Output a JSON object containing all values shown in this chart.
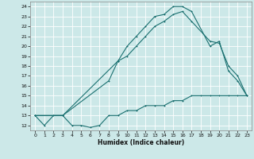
{
  "xlabel": "Humidex (Indice chaleur)",
  "bg_color": "#cce8e8",
  "line_color": "#1a7070",
  "grid_color": "#ffffff",
  "xlim": [
    -0.5,
    23.5
  ],
  "ylim": [
    11.5,
    24.5
  ],
  "xticks": [
    0,
    1,
    2,
    3,
    4,
    5,
    6,
    7,
    8,
    9,
    10,
    11,
    12,
    13,
    14,
    15,
    16,
    17,
    18,
    19,
    20,
    21,
    22,
    23
  ],
  "yticks": [
    12,
    13,
    14,
    15,
    16,
    17,
    18,
    19,
    20,
    21,
    22,
    23,
    24
  ],
  "line1_x": [
    0,
    1,
    2,
    3,
    4,
    5,
    6,
    7,
    8,
    9,
    10,
    11,
    12,
    13,
    14,
    15,
    16,
    17,
    18,
    19,
    20,
    21,
    22,
    23
  ],
  "line1_y": [
    13,
    12,
    13,
    13,
    12,
    12,
    11.8,
    12,
    13,
    13,
    13.5,
    13.5,
    14,
    14,
    14,
    14.5,
    14.5,
    15,
    15,
    15,
    15,
    15,
    15,
    15
  ],
  "line2_x": [
    0,
    3,
    9,
    10,
    11,
    12,
    13,
    14,
    15,
    16,
    17,
    19,
    20,
    21,
    22,
    23
  ],
  "line2_y": [
    13,
    13,
    18.5,
    20,
    21,
    22,
    23,
    23.2,
    24,
    24,
    23.5,
    20,
    20.5,
    17.5,
    16.5,
    15
  ],
  "line3_x": [
    0,
    3,
    8,
    9,
    10,
    11,
    12,
    13,
    14,
    15,
    16,
    17,
    19,
    20,
    21,
    22,
    23
  ],
  "line3_y": [
    13,
    13,
    16.5,
    18.5,
    19,
    20,
    21,
    22,
    22.5,
    23.2,
    23.5,
    22.5,
    20.5,
    20.3,
    18,
    17,
    15
  ]
}
